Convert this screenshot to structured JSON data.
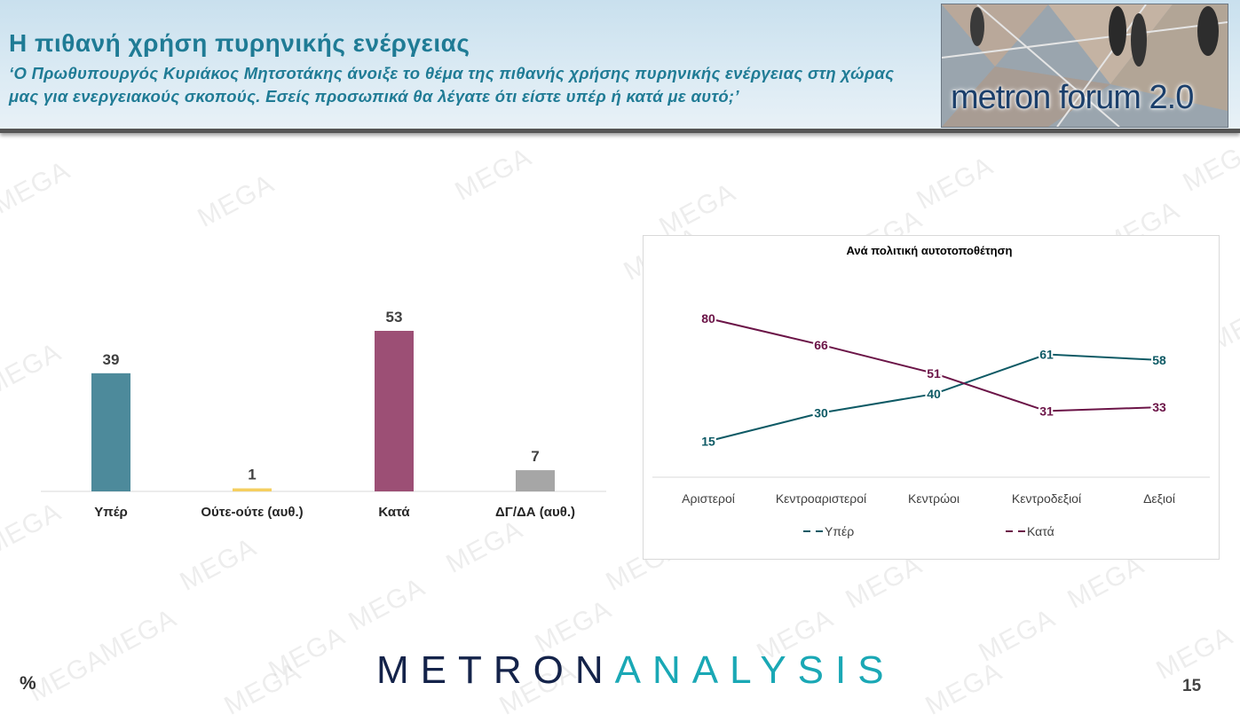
{
  "header": {
    "title": "Η πιθανή χρήση πυρηνικής ενέργειας",
    "question": "‘Ο Πρωθυπουργός Κυριάκος Μητσοτάκης άνοιξε το θέμα της πιθανής χρήσης πυρηνικής ενέργειας στη χώρας μας για ενεργειακούς σκοπούς. Εσείς προσωπικά θα λέγατε ότι είστε υπέρ ή κατά με αυτό;’",
    "logo": "metron forum 2.0"
  },
  "watermark": "MEGA",
  "footer": {
    "brand_left": "METRON",
    "brand_right": "ANALYSIS",
    "percent": "%",
    "page": "15"
  },
  "chart_data": [
    {
      "type": "bar",
      "categories": [
        "Υπέρ",
        "Ούτε-ούτε (αυθ.)",
        "Κατά",
        "ΔΓ/ΔΑ (αυθ.)"
      ],
      "values": [
        39,
        1,
        53,
        7
      ],
      "colors": [
        "#4d8a9b",
        "#f5cf60",
        "#9c4f75",
        "#a6a6a6"
      ],
      "ylim": [
        0,
        53
      ],
      "grid": false,
      "legend": "none"
    },
    {
      "type": "line",
      "title": "Ανά πολιτική αυτοτοποθέτηση",
      "categories": [
        "Αριστεροί",
        "Κεντροαριστεροί",
        "Κεντρώοι",
        "Κεντροδεξιοί",
        "Δεξιοί"
      ],
      "series": [
        {
          "name": "Υπέρ",
          "values": [
            15,
            30,
            40,
            61,
            58
          ],
          "color": "#0e5a65"
        },
        {
          "name": "Κατά",
          "values": [
            80,
            66,
            51,
            31,
            33
          ],
          "color": "#6b1447"
        }
      ],
      "ylim": [
        0,
        90
      ],
      "grid": false,
      "legend": "bottom"
    }
  ]
}
